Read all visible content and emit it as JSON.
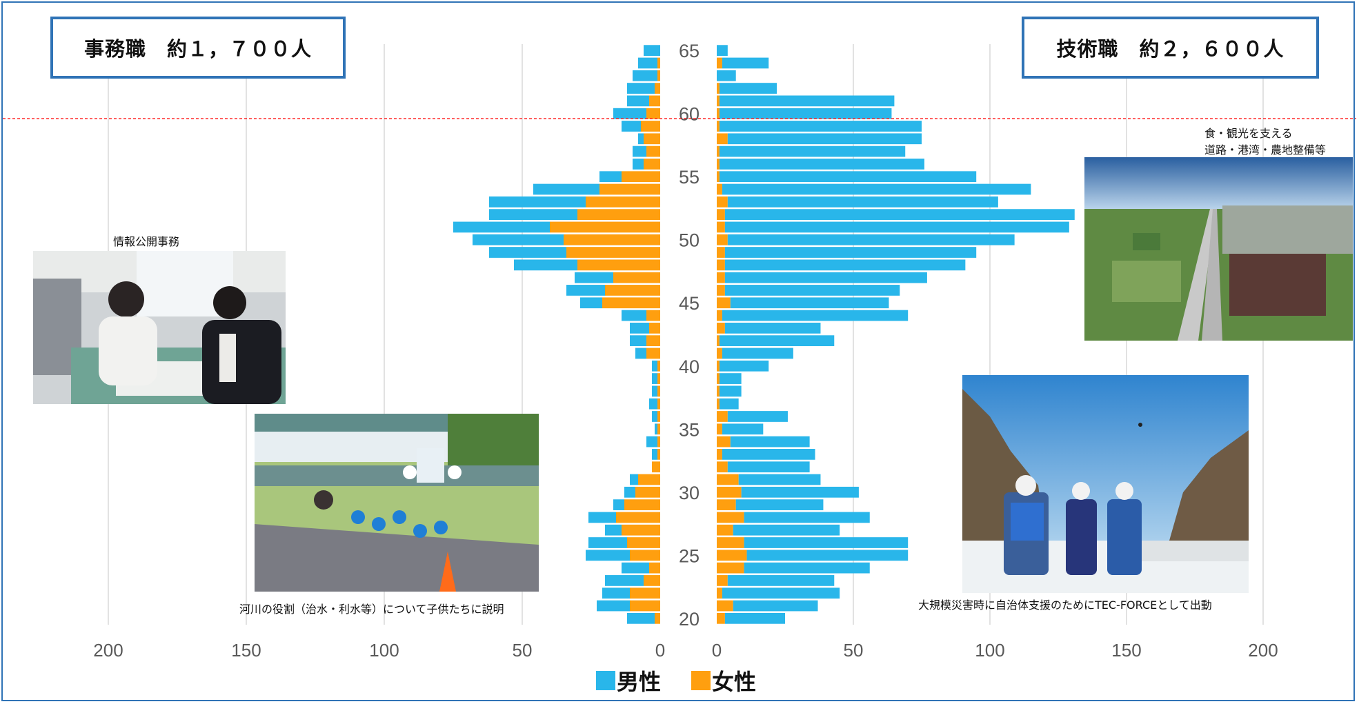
{
  "titles": {
    "left": "事務職　約１，７００人",
    "right": "技術職　約２，６００人"
  },
  "photos": {
    "office_caption": "情報公開事務",
    "river_caption": "河川の役割（治水・利水等）について子供たちに説明",
    "aerial_caption_line1": "食・観光を支える",
    "aerial_caption_line2": "道路・港湾・農地整備等",
    "disaster_caption": "大規模災害時に自治体支援のためにTEC-FORCEとして出動"
  },
  "legend": {
    "male": "男性",
    "female": "女性"
  },
  "colors": {
    "male": "#29b6ea",
    "female": "#ff9f0f",
    "border": "#2f73b6",
    "reference_line": "#ff0000",
    "grid": "#d9d9d9",
    "axis_text": "#595959"
  },
  "chart_data": [
    {
      "type": "bar",
      "title": "事務職　約１，７００人",
      "orientation": "horizontal-population-pyramid-left",
      "ages": [
        20,
        21,
        22,
        23,
        24,
        25,
        26,
        27,
        28,
        29,
        30,
        31,
        32,
        33,
        34,
        35,
        36,
        37,
        38,
        39,
        40,
        41,
        42,
        43,
        44,
        45,
        46,
        47,
        48,
        49,
        50,
        51,
        52,
        53,
        54,
        55,
        56,
        57,
        58,
        59,
        60,
        61,
        62,
        63,
        64,
        65
      ],
      "series": [
        {
          "name": "男性",
          "values": [
            10,
            12,
            10,
            14,
            10,
            16,
            14,
            6,
            10,
            4,
            4,
            3,
            0,
            2,
            4,
            1,
            2,
            3,
            2,
            2,
            2,
            4,
            6,
            7,
            9,
            8,
            14,
            14,
            23,
            28,
            33,
            35,
            32,
            35,
            24,
            8,
            4,
            5,
            2,
            7,
            12,
            8,
            10,
            9,
            7,
            6
          ]
        },
        {
          "name": "女性",
          "values": [
            2,
            11,
            11,
            6,
            4,
            11,
            12,
            14,
            16,
            13,
            9,
            8,
            3,
            1,
            1,
            1,
            1,
            1,
            1,
            1,
            1,
            5,
            5,
            4,
            5,
            21,
            20,
            17,
            30,
            34,
            35,
            40,
            30,
            27,
            22,
            14,
            6,
            5,
            6,
            7,
            5,
            4,
            2,
            1,
            1,
            0
          ]
        }
      ],
      "xlim": [
        0,
        200
      ],
      "xticks": [
        0,
        50,
        100,
        150,
        200
      ],
      "yticks": [
        20,
        25,
        30,
        35,
        40,
        45,
        50,
        55,
        60,
        65
      ],
      "reference_line_age": 59.6
    },
    {
      "type": "bar",
      "title": "技術職　約２，６００人",
      "orientation": "horizontal-population-pyramid-right",
      "ages": [
        20,
        21,
        22,
        23,
        24,
        25,
        26,
        27,
        28,
        29,
        30,
        31,
        32,
        33,
        34,
        35,
        36,
        37,
        38,
        39,
        40,
        41,
        42,
        43,
        44,
        45,
        46,
        47,
        48,
        49,
        50,
        51,
        52,
        53,
        54,
        55,
        56,
        57,
        58,
        59,
        60,
        61,
        62,
        63,
        64,
        65
      ],
      "series": [
        {
          "name": "男性",
          "values": [
            22,
            31,
            43,
            39,
            46,
            59,
            60,
            39,
            46,
            32,
            43,
            30,
            30,
            34,
            29,
            15,
            22,
            7,
            8,
            8,
            18,
            26,
            42,
            35,
            68,
            58,
            64,
            74,
            88,
            92,
            105,
            126,
            128,
            99,
            113,
            94,
            75,
            68,
            71,
            74,
            63,
            64,
            21,
            7,
            17,
            4
          ]
        },
        {
          "name": "女性",
          "values": [
            3,
            6,
            2,
            4,
            10,
            11,
            10,
            6,
            10,
            7,
            9,
            8,
            4,
            2,
            5,
            2,
            4,
            1,
            1,
            1,
            1,
            2,
            1,
            3,
            2,
            5,
            3,
            3,
            3,
            3,
            4,
            3,
            3,
            4,
            2,
            1,
            1,
            1,
            4,
            1,
            1,
            1,
            1,
            0,
            2,
            0
          ]
        }
      ],
      "xlim": [
        0,
        200
      ],
      "xticks": [
        0,
        50,
        100,
        150,
        200
      ],
      "yticks": [
        20,
        25,
        30,
        35,
        40,
        45,
        50,
        55,
        60,
        65
      ]
    }
  ]
}
